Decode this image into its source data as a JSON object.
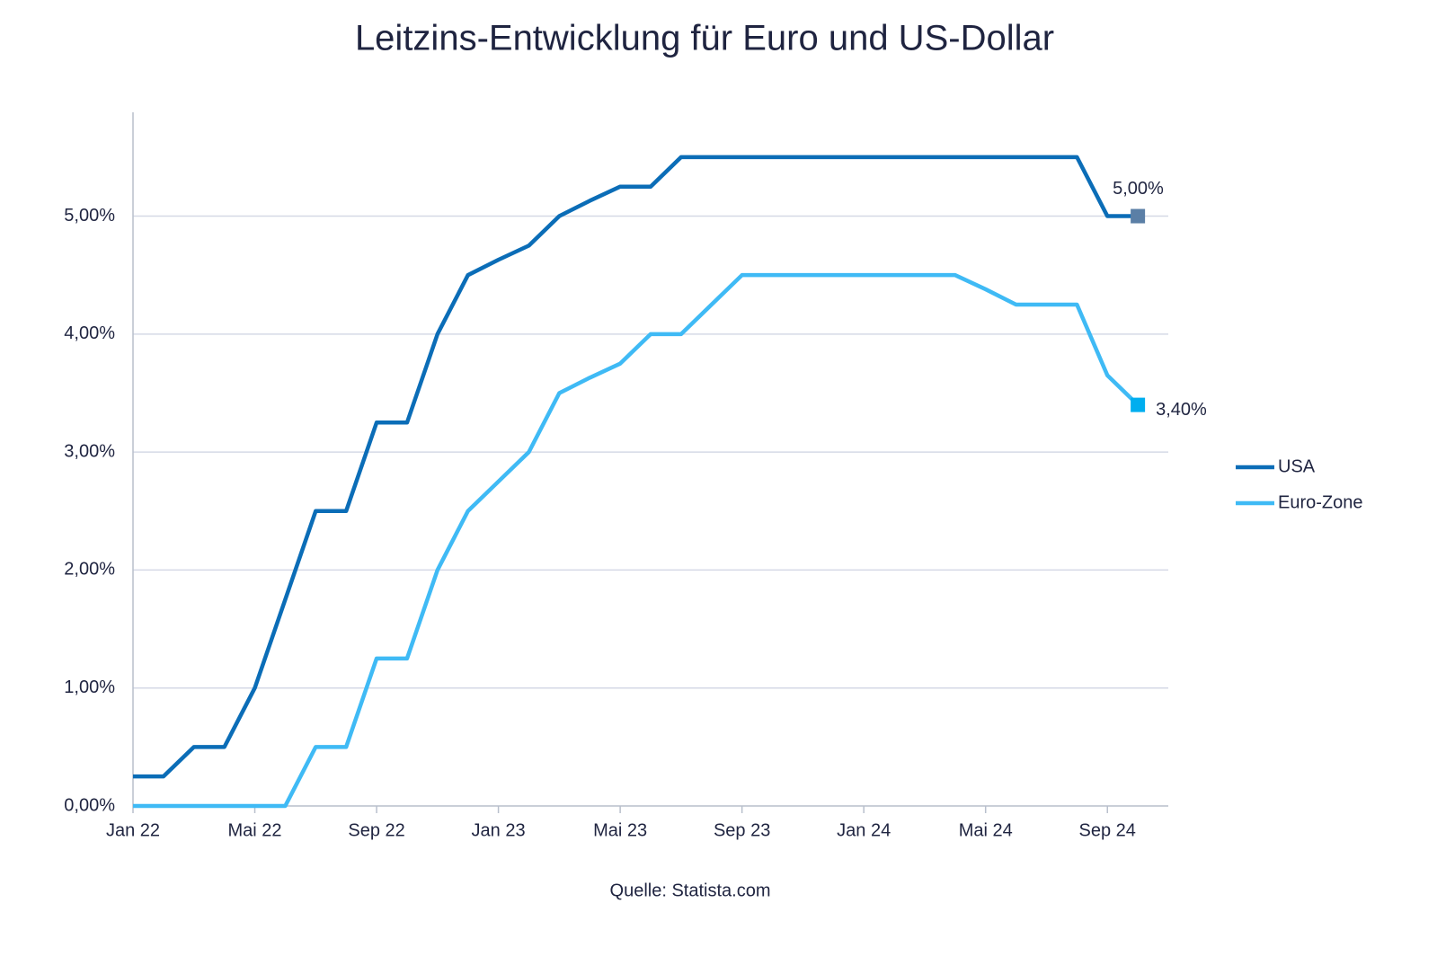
{
  "chart_data": {
    "type": "line",
    "title": "Leitzins-Entwicklung für Euro und US-Dollar",
    "source": "Quelle: Statista.com",
    "categories": [
      "Jan 22",
      null,
      null,
      null,
      "Mai 22",
      null,
      null,
      null,
      "Sep 22",
      null,
      null,
      null,
      "Jan 23",
      null,
      null,
      null,
      "Mai 23",
      null,
      null,
      null,
      "Sep 23",
      null,
      null,
      null,
      "Jan 24",
      null,
      null,
      null,
      "Mai 24",
      null,
      null,
      null,
      "Sep 24",
      null
    ],
    "series": [
      {
        "name": "USA",
        "color": "#0b6db7",
        "marker_color": "#5b7fa6",
        "values": [
          0.25,
          0.25,
          0.5,
          0.5,
          1.0,
          1.75,
          2.5,
          2.5,
          3.25,
          3.25,
          4.0,
          4.5,
          4.63,
          4.75,
          5.0,
          5.13,
          5.25,
          5.25,
          5.5,
          5.5,
          5.5,
          5.5,
          5.5,
          5.5,
          5.5,
          5.5,
          5.5,
          5.5,
          5.5,
          5.5,
          5.5,
          5.5,
          5.0,
          5.0
        ],
        "value_labels": [
          null,
          null,
          null,
          null,
          null,
          null,
          null,
          null,
          null,
          null,
          null,
          null,
          null,
          null,
          null,
          null,
          null,
          null,
          null,
          null,
          null,
          null,
          null,
          null,
          null,
          null,
          null,
          null,
          null,
          null,
          null,
          null,
          null,
          "5,00%"
        ]
      },
      {
        "name": "Euro-Zone",
        "color": "#3fbaf5",
        "marker_color": "#00aeef",
        "values": [
          0,
          0,
          0,
          0,
          0,
          0,
          0.5,
          0.5,
          1.25,
          1.25,
          2.0,
          2.5,
          2.75,
          3.0,
          3.5,
          3.63,
          3.75,
          4.0,
          4.0,
          4.25,
          4.5,
          4.5,
          4.5,
          4.5,
          4.5,
          4.5,
          4.5,
          4.5,
          4.38,
          4.25,
          4.25,
          4.25,
          3.65,
          3.4
        ],
        "value_labels": [
          null,
          null,
          null,
          null,
          null,
          null,
          null,
          null,
          null,
          null,
          null,
          null,
          null,
          null,
          null,
          null,
          null,
          null,
          null,
          null,
          null,
          null,
          null,
          null,
          null,
          null,
          null,
          null,
          null,
          null,
          null,
          null,
          null,
          "3,40%"
        ]
      }
    ],
    "ylim": [
      0,
      5.88
    ],
    "yticks": [
      {
        "value": 0,
        "label": "0,00%"
      },
      {
        "value": 1,
        "label": "1,00%"
      },
      {
        "value": 2,
        "label": "2,00%"
      },
      {
        "value": 3,
        "label": "3,00%"
      },
      {
        "value": 4,
        "label": "4,00%"
      },
      {
        "value": 5,
        "label": "5,00%"
      }
    ],
    "grid": true,
    "legend": "right"
  }
}
